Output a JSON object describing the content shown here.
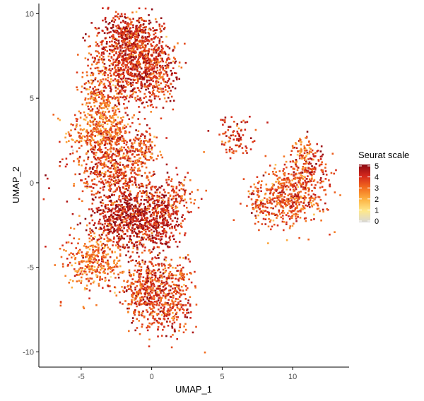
{
  "chart_data": {
    "type": "scatter",
    "xlabel": "UMAP_1",
    "ylabel": "UMAP_2",
    "xlim": [
      -8,
      14
    ],
    "ylim": [
      -10.9,
      10.6
    ],
    "x_ticks": [
      -5,
      0,
      5,
      10
    ],
    "y_ticks": [
      -10,
      -5,
      0,
      5,
      10
    ],
    "x_tick_labels": [
      "-5",
      "0",
      "5",
      "10"
    ],
    "y_tick_labels": [
      "-10",
      "-5",
      "0",
      "5",
      "10"
    ],
    "grid": false,
    "legend": {
      "title": "Seurat scale",
      "placement": "right",
      "range": [
        0,
        5
      ],
      "ticks": [
        5,
        4,
        3,
        2,
        1,
        0
      ],
      "tick_labels": [
        "5",
        "4",
        "3",
        "2",
        "1",
        "0"
      ]
    },
    "colorscale": [
      "#d8d8d8",
      "#fee88b",
      "#fdb241",
      "#f36d1e",
      "#d5281c",
      "#8b0a13"
    ],
    "clusters": [
      {
        "cx": -3.8,
        "cy": 3.0,
        "sx": 1.1,
        "sy": 0.7,
        "n": 260,
        "value": 3.0
      },
      {
        "cx": -3.0,
        "cy": 4.3,
        "sx": 0.6,
        "sy": 1.6,
        "n": 180,
        "value": 3.0
      },
      {
        "cx": -1.8,
        "cy": 7.2,
        "sx": 1.2,
        "sy": 1.4,
        "n": 700,
        "value": 3.9
      },
      {
        "cx": 0.2,
        "cy": 6.8,
        "sx": 0.9,
        "sy": 1.0,
        "n": 380,
        "value": 3.8
      },
      {
        "cx": -1.3,
        "cy": 8.8,
        "sx": 1.0,
        "sy": 0.5,
        "n": 240,
        "value": 4.0
      },
      {
        "cx": -4.0,
        "cy": 5.2,
        "sx": 0.6,
        "sy": 1.0,
        "n": 120,
        "value": 3.0
      },
      {
        "cx": -2.6,
        "cy": 0.8,
        "sx": 1.4,
        "sy": 1.2,
        "n": 600,
        "value": 3.5
      },
      {
        "cx": -1.6,
        "cy": -2.1,
        "sx": 1.3,
        "sy": 1.0,
        "n": 650,
        "value": 4.4
      },
      {
        "cx": 0.6,
        "cy": -2.3,
        "sx": 0.8,
        "sy": 0.9,
        "n": 250,
        "value": 4.2
      },
      {
        "cx": 1.6,
        "cy": -0.9,
        "sx": 0.8,
        "sy": 0.6,
        "n": 120,
        "value": 3.6
      },
      {
        "cx": -4.1,
        "cy": -4.6,
        "sx": 1.0,
        "sy": 0.9,
        "n": 340,
        "value": 3.0
      },
      {
        "cx": 0.8,
        "cy": -6.6,
        "sx": 1.1,
        "sy": 1.2,
        "n": 560,
        "value": 3.6
      },
      {
        "cx": -0.9,
        "cy": -6.3,
        "sx": 0.7,
        "sy": 0.8,
        "n": 180,
        "value": 3.5
      },
      {
        "cx": -0.5,
        "cy": 2.1,
        "sx": 0.5,
        "sy": 0.5,
        "n": 90,
        "value": 3.4
      },
      {
        "cx": 6.0,
        "cy": 2.6,
        "sx": 0.7,
        "sy": 0.5,
        "n": 90,
        "value": 4.0
      },
      {
        "cx": 9.7,
        "cy": -0.8,
        "sx": 1.2,
        "sy": 0.9,
        "n": 480,
        "value": 3.4
      },
      {
        "cx": 11.2,
        "cy": 0.8,
        "sx": 0.7,
        "sy": 0.8,
        "n": 160,
        "value": 3.7
      },
      {
        "cx": 10.6,
        "cy": 1.8,
        "sx": 0.35,
        "sy": 0.45,
        "n": 50,
        "value": 2.6
      },
      {
        "cx": 7.6,
        "cy": -1.2,
        "sx": 0.4,
        "sy": 0.5,
        "n": 60,
        "value": 3.2
      },
      {
        "cx": -6.5,
        "cy": -7.2,
        "sx": 0.08,
        "sy": 0.08,
        "n": 3,
        "value": 3.0
      }
    ]
  }
}
